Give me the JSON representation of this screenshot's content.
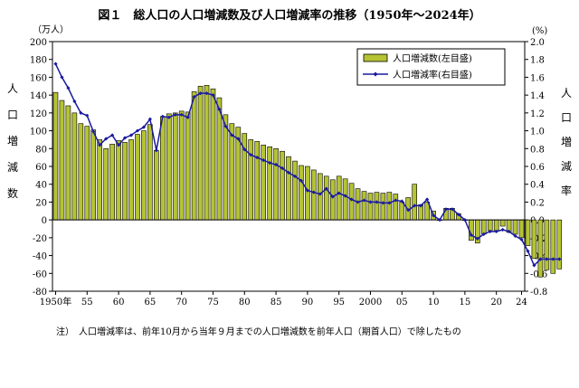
{
  "chart_data": {
    "type": "bar",
    "title": "図１　総人口の人口増減数及び人口増減率の推移（1950年～2024年）",
    "left_unit": "（万人）",
    "right_unit": "(%)",
    "left_axis_label": [
      "人",
      "口",
      "増",
      "減",
      "数"
    ],
    "right_axis_label": [
      "人",
      "口",
      "増",
      "減",
      "率"
    ],
    "ylim_left": [
      -80,
      200
    ],
    "ylim_right": [
      -0.8,
      2.0
    ],
    "yticks_left": [
      "200",
      "180",
      "160",
      "140",
      "120",
      "100",
      "80",
      "60",
      "40",
      "20",
      "0",
      "-20",
      "-40",
      "-60",
      "-80"
    ],
    "yticks_right": [
      "2.0",
      "1.8",
      "1.6",
      "1.4",
      "1.2",
      "1.0",
      "0.8",
      "0.6",
      "0.4",
      "0.2",
      "0.0",
      "-0.2",
      "-0.4",
      "-0.6",
      "-0.8"
    ],
    "x_start": 1950,
    "x_end": 2024,
    "xtick_labels": [
      {
        "year": 1950,
        "label": "1950年"
      },
      {
        "year": 1955,
        "label": "55"
      },
      {
        "year": 1960,
        "label": "60"
      },
      {
        "year": 1965,
        "label": "65"
      },
      {
        "year": 1970,
        "label": "70"
      },
      {
        "year": 1975,
        "label": "75"
      },
      {
        "year": 1980,
        "label": "80"
      },
      {
        "year": 1985,
        "label": "85"
      },
      {
        "year": 1990,
        "label": "90"
      },
      {
        "year": 1995,
        "label": "95"
      },
      {
        "year": 2000,
        "label": "2000"
      },
      {
        "year": 2005,
        "label": "05"
      },
      {
        "year": 2010,
        "label": "10"
      },
      {
        "year": 2015,
        "label": "15"
      },
      {
        "year": 2020,
        "label": "20"
      },
      {
        "year": 2024,
        "label": "24"
      }
    ],
    "legend_position": "top-right",
    "series": [
      {
        "name": "人口増減数(左目盛)",
        "axis": "left",
        "kind": "bar",
        "color": "#b5c334",
        "values": [
          143,
          134,
          128,
          120,
          108,
          105,
          101,
          90,
          80,
          85,
          89,
          87,
          90,
          96,
          100,
          107,
          78,
          116,
          119,
          120,
          122,
          121,
          144,
          150,
          151,
          147,
          137,
          118,
          108,
          104,
          97,
          90,
          88,
          84,
          82,
          80,
          77,
          71,
          66,
          61,
          60,
          56,
          52,
          49,
          45,
          49,
          46,
          41,
          35,
          32,
          30,
          31,
          30,
          31,
          29,
          20,
          25,
          40,
          17,
          20,
          10,
          0,
          13,
          13,
          7,
          0,
          -23,
          -26,
          -16,
          -12,
          -12,
          -7,
          -14,
          -16,
          -20,
          -29,
          -43,
          -64,
          -56,
          -60,
          -55
        ]
      },
      {
        "name": "人口増減率(右目盛)",
        "axis": "right",
        "kind": "line",
        "color": "#1a1aa0",
        "values": [
          1.75,
          1.6,
          1.48,
          1.33,
          1.2,
          1.17,
          0.99,
          0.84,
          0.91,
          0.95,
          0.84,
          0.92,
          0.95,
          1.0,
          1.04,
          1.13,
          0.78,
          1.16,
          1.15,
          1.18,
          1.18,
          1.15,
          1.38,
          1.42,
          1.42,
          1.4,
          1.24,
          1.05,
          0.95,
          0.91,
          0.79,
          0.73,
          0.7,
          0.67,
          0.64,
          0.62,
          0.58,
          0.53,
          0.49,
          0.44,
          0.33,
          0.31,
          0.29,
          0.35,
          0.26,
          0.3,
          0.27,
          0.23,
          0.2,
          0.22,
          0.2,
          0.2,
          0.19,
          0.19,
          0.22,
          0.21,
          0.11,
          0.16,
          0.16,
          0.23,
          0.05,
          0.0,
          0.12,
          0.12,
          0.06,
          0.0,
          -0.17,
          -0.21,
          -0.16,
          -0.13,
          -0.13,
          -0.11,
          -0.13,
          -0.18,
          -0.22,
          -0.35,
          -0.51,
          -0.44,
          -0.44,
          -0.44,
          -0.44
        ]
      }
    ]
  },
  "note": "注）　人口増減率は、前年10月から当年９月までの人口増減数を前年人口（期首人口）で除したもの"
}
